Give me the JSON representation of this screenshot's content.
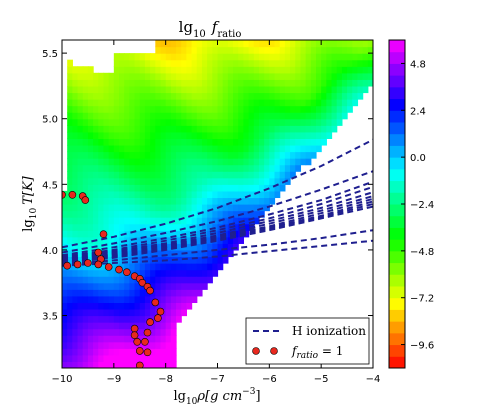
{
  "chart_data": {
    "type": "heatmap",
    "title": "lg10 f_ratio",
    "title_parts": {
      "main": "lg",
      "sub": "10",
      "var": "f",
      "varsub": "ratio"
    },
    "xlabel_parts": {
      "main": "lg",
      "sub": "10",
      "rest": "ρ[g  cm",
      "sup": "−3",
      "end": "]"
    },
    "ylabel_parts": {
      "main": "lg",
      "sub": "10",
      "rest": "T[K]"
    },
    "xlim": [
      -10,
      -4
    ],
    "ylim": [
      3.1,
      5.6
    ],
    "x_ticks": [
      -10,
      -9,
      -8,
      -7,
      -6,
      -5,
      -4
    ],
    "x_tick_labels": [
      "−10",
      "−9",
      "−8",
      "−7",
      "−6",
      "−5",
      "−4"
    ],
    "y_ticks": [
      3.5,
      4.0,
      4.5,
      5.0,
      5.5
    ],
    "y_tick_labels": [
      "3.5",
      "4.0",
      "4.5",
      "5.0",
      "5.5"
    ],
    "colorbar": {
      "range": [
        -10.8,
        6.0
      ],
      "ticks": [
        4.8,
        2.4,
        0.0,
        -2.4,
        -4.8,
        -7.2,
        -9.6
      ],
      "tick_labels": [
        "4.8",
        "2.4",
        "0.0",
        "−2.4",
        "−4.8",
        "−7.2",
        "−9.6"
      ],
      "colormap": "gist_rainbow_r"
    },
    "legend": {
      "position": "bottom-right",
      "entries": [
        {
          "label": "H ionization",
          "style": "dashed",
          "color": "#1f1f8f"
        },
        {
          "label_parts": {
            "var": "f",
            "varsub": "ratio",
            "rest": " = 1"
          },
          "style": "markers",
          "color": "#e8281e"
        }
      ]
    },
    "series": [
      {
        "x": [
          -10,
          -9,
          -8,
          -7,
          -6,
          -5,
          -4
        ],
        "y": [
          4.02,
          4.1,
          4.2,
          4.32,
          4.47,
          4.64,
          4.84
        ]
      },
      {
        "x": [
          -10,
          -9,
          -8,
          -7,
          -6,
          -5,
          -4
        ],
        "y": [
          3.98,
          4.05,
          4.13,
          4.22,
          4.33,
          4.46,
          4.6
        ]
      },
      {
        "x": [
          -10,
          -9,
          -8,
          -7,
          -6,
          -5,
          -4
        ],
        "y": [
          3.96,
          4.02,
          4.09,
          4.17,
          4.27,
          4.38,
          4.52
        ]
      },
      {
        "x": [
          -10,
          -9,
          -8,
          -7,
          -6,
          -5,
          -4
        ],
        "y": [
          3.95,
          4.0,
          4.07,
          4.15,
          4.24,
          4.35,
          4.48
        ]
      },
      {
        "x": [
          -10,
          -9,
          -8,
          -7,
          -6,
          -5,
          -4
        ],
        "y": [
          3.94,
          3.99,
          4.05,
          4.13,
          4.22,
          4.32,
          4.44
        ]
      },
      {
        "x": [
          -10,
          -9,
          -8,
          -7,
          -6,
          -5,
          -4
        ],
        "y": [
          3.93,
          3.98,
          4.04,
          4.11,
          4.2,
          4.3,
          4.41
        ]
      },
      {
        "x": [
          -10,
          -9,
          -8,
          -7,
          -6,
          -5,
          -4
        ],
        "y": [
          3.925,
          3.97,
          4.03,
          4.1,
          4.18,
          4.28,
          4.39
        ]
      },
      {
        "x": [
          -10,
          -9,
          -8,
          -7,
          -6,
          -5,
          -4
        ],
        "y": [
          3.92,
          3.96,
          4.02,
          4.09,
          4.17,
          4.26,
          4.37
        ]
      },
      {
        "x": [
          -10,
          -9,
          -8,
          -7,
          -6,
          -5,
          -4
        ],
        "y": [
          3.91,
          3.95,
          4.01,
          4.08,
          4.16,
          4.25,
          4.35
        ]
      },
      {
        "x": [
          -10,
          -9,
          -8,
          -7,
          -6,
          -5,
          -4
        ],
        "y": [
          3.9,
          3.94,
          4.0,
          4.07,
          4.15,
          4.24,
          4.33
        ]
      },
      {
        "x": [
          -10,
          -9,
          -8,
          -7,
          -6,
          -5,
          -4
        ],
        "y": [
          3.89,
          3.92,
          3.96,
          4.0,
          4.04,
          4.09,
          4.15
        ]
      },
      {
        "x": [
          -10,
          -9,
          -8,
          -7,
          -6,
          -5,
          -4
        ],
        "y": [
          3.88,
          3.9,
          3.92,
          3.95,
          3.99,
          4.03,
          4.07
        ]
      }
    ],
    "points": [
      {
        "x": -10.0,
        "y": 4.42
      },
      {
        "x": -9.8,
        "y": 4.42
      },
      {
        "x": -9.6,
        "y": 4.41
      },
      {
        "x": -9.55,
        "y": 4.38
      },
      {
        "x": -9.2,
        "y": 4.12
      },
      {
        "x": -9.3,
        "y": 3.98
      },
      {
        "x": -9.25,
        "y": 3.93
      },
      {
        "x": -9.9,
        "y": 3.88
      },
      {
        "x": -9.7,
        "y": 3.89
      },
      {
        "x": -9.5,
        "y": 3.9
      },
      {
        "x": -9.3,
        "y": 3.89
      },
      {
        "x": -9.1,
        "y": 3.87
      },
      {
        "x": -8.9,
        "y": 3.85
      },
      {
        "x": -8.75,
        "y": 3.83
      },
      {
        "x": -8.6,
        "y": 3.8
      },
      {
        "x": -8.5,
        "y": 3.78
      },
      {
        "x": -8.45,
        "y": 3.75
      },
      {
        "x": -8.35,
        "y": 3.72
      },
      {
        "x": -8.3,
        "y": 3.69
      },
      {
        "x": -8.2,
        "y": 3.6
      },
      {
        "x": -8.1,
        "y": 3.53
      },
      {
        "x": -8.15,
        "y": 3.48
      },
      {
        "x": -8.3,
        "y": 3.45
      },
      {
        "x": -8.35,
        "y": 3.37
      },
      {
        "x": -8.4,
        "y": 3.3
      },
      {
        "x": -8.6,
        "y": 3.4
      },
      {
        "x": -8.6,
        "y": 3.35
      },
      {
        "x": -8.55,
        "y": 3.3
      },
      {
        "x": -8.5,
        "y": 3.23
      },
      {
        "x": -8.35,
        "y": 3.22
      },
      {
        "x": -8.5,
        "y": 3.12
      }
    ]
  }
}
